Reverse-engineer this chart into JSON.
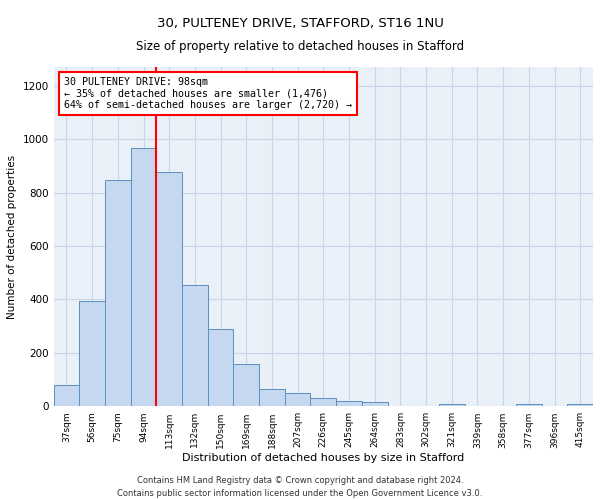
{
  "title1": "30, PULTENEY DRIVE, STAFFORD, ST16 1NU",
  "title2": "Size of property relative to detached houses in Stafford",
  "xlabel": "Distribution of detached houses by size in Stafford",
  "ylabel": "Number of detached properties",
  "footer": "Contains HM Land Registry data © Crown copyright and database right 2024.\nContains public sector information licensed under the Open Government Licence v3.0.",
  "categories": [
    "37sqm",
    "56sqm",
    "75sqm",
    "94sqm",
    "113sqm",
    "132sqm",
    "150sqm",
    "169sqm",
    "188sqm",
    "207sqm",
    "226sqm",
    "245sqm",
    "264sqm",
    "283sqm",
    "302sqm",
    "321sqm",
    "339sqm",
    "358sqm",
    "377sqm",
    "396sqm",
    "415sqm"
  ],
  "values": [
    80,
    395,
    845,
    965,
    875,
    455,
    290,
    160,
    65,
    50,
    30,
    20,
    15,
    0,
    0,
    10,
    0,
    0,
    10,
    0,
    10
  ],
  "bar_color": "#c5d8f0",
  "bar_edge_color": "#5a8fc3",
  "vline_x": 3.5,
  "vline_color": "red",
  "annotation_text": "30 PULTENEY DRIVE: 98sqm\n← 35% of detached houses are smaller (1,476)\n64% of semi-detached houses are larger (2,720) →",
  "annotation_box_color": "white",
  "annotation_box_edge_color": "red",
  "ylim": [
    0,
    1270
  ],
  "yticks": [
    0,
    200,
    400,
    600,
    800,
    1000,
    1200
  ],
  "grid_color": "#c8d4e8",
  "bg_color": "#eaf0f8"
}
